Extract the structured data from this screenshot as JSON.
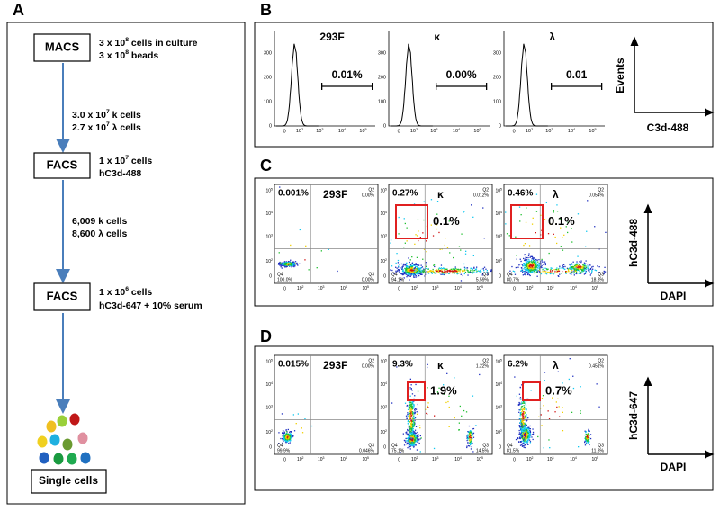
{
  "axis_ticks": {
    "zero": "0",
    "base": "10",
    "exps": [
      "2",
      "3",
      "4",
      "5"
    ]
  },
  "panel_a": {
    "letter": "A",
    "macs": "MACS",
    "macs_lines": [
      [
        "3 x 10",
        {
          "sup": "8"
        },
        " cells in culture"
      ],
      [
        "3 x 10",
        {
          "sup": "8"
        },
        " beads"
      ]
    ],
    "step1_lines": [
      [
        "3.0 x 10",
        {
          "sup": "7"
        },
        "  k cells"
      ],
      [
        "2.7 x 10",
        {
          "sup": "7"
        },
        " λ cells"
      ]
    ],
    "facs1": "FACS",
    "facs1_lines": [
      [
        "1 x 10",
        {
          "sup": "7"
        },
        " cells"
      ],
      [
        "hC3d-488"
      ]
    ],
    "step2_lines": [
      [
        "6,009 k cells"
      ],
      [
        "8,600 λ cells"
      ]
    ],
    "facs2": "FACS",
    "facs2_lines": [
      [
        "1 x 10",
        {
          "sup": "6"
        },
        " cells"
      ],
      [
        "hC3d-647 + 10% serum"
      ]
    ],
    "result": "Single cells"
  },
  "panel_b": {
    "letter": "B",
    "y_axis": "Events",
    "x_axis": "C3d-488",
    "histograms": [
      {
        "label": "293F",
        "gate": "0.01%",
        "yticks": [
          "0",
          "100",
          "200",
          "300"
        ]
      },
      {
        "label": "κ",
        "gate": "0.00%",
        "yticks": [
          "0",
          "100",
          "200",
          "300"
        ]
      },
      {
        "label": "λ",
        "gate": "0.01",
        "yticks": [
          "0",
          "100",
          "200",
          "300"
        ]
      }
    ]
  },
  "panel_c": {
    "letter": "C",
    "y_axis": "hC3d-488",
    "x_axis": "DAPI",
    "plots": [
      {
        "q1": "0.001%",
        "label": "293F",
        "q2_name": "Q2",
        "q2": "0.00%",
        "q4_name": "Q4",
        "q4": "100.0%",
        "q3_name": "Q3",
        "q3": "0.00%"
      },
      {
        "q1": "0.27%",
        "label": "κ",
        "q2_name": "Q2",
        "q2": "0.012%",
        "q4_name": "Q4",
        "q4": "94.1%",
        "q3_name": "Q3",
        "q3": "5.59%",
        "gate": "0.1%"
      },
      {
        "q1": "0.46%",
        "label": "λ",
        "q2_name": "Q2",
        "q2": "0.054%",
        "q4_name": "Q4",
        "q4": "80.7%",
        "q3_name": "Q3",
        "q3": "18.8%",
        "gate": "0.1%"
      }
    ]
  },
  "panel_d": {
    "letter": "D",
    "y_axis": "hC3d-647",
    "x_axis": "DAPI",
    "plots": [
      {
        "q1": "0.015%",
        "label": "293F",
        "q2_name": "Q2",
        "q2": "0.00%",
        "q4_name": "Q4",
        "q4": "99.9%",
        "q3_name": "Q3",
        "q3": "0.046%"
      },
      {
        "q1": "9.3%",
        "label": "κ",
        "q2_name": "Q2",
        "q2": "1.22%",
        "q4_name": "Q4",
        "q4": "75.1%",
        "q3_name": "Q3",
        "q3": "14.5%",
        "gate": "1.9%"
      },
      {
        "q1": "6.2%",
        "label": "λ",
        "q2_name": "Q2",
        "q2": "0.451%",
        "q4_name": "Q4",
        "q4": "81.5%",
        "q3_name": "Q3",
        "q3": "11.8%",
        "gate": "0.7%"
      }
    ]
  }
}
